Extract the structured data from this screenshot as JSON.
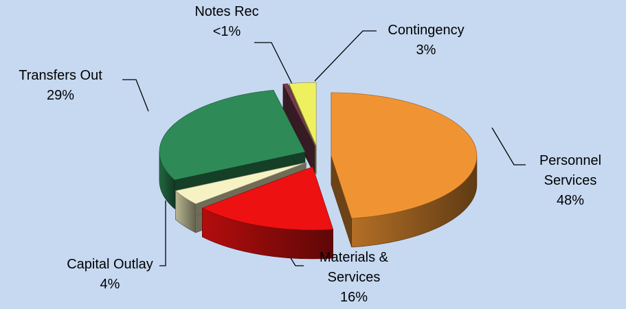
{
  "chart_data": {
    "type": "pie",
    "categories": [
      "Personnel Services",
      "Materials & Services",
      "Capital Outlay",
      "Transfers Out",
      "Notes Rec",
      "Contingency"
    ],
    "values": [
      48,
      16,
      4,
      29,
      0.5,
      3
    ],
    "value_labels": [
      "48%",
      "16%",
      "4%",
      "29%",
      "<1%",
      "3%"
    ],
    "colors": [
      "#f09433",
      "#ee1111",
      "#f7f2c4",
      "#2e8b57",
      "#7b3b4f",
      "#eef060"
    ]
  }
}
